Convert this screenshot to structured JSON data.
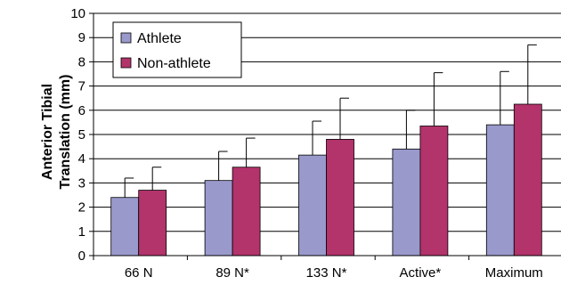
{
  "chart_data": {
    "type": "bar",
    "title": "",
    "xlabel": "",
    "ylabel_lines": [
      "Anterior Tibial",
      "Translation (mm)"
    ],
    "ylim": [
      0,
      10
    ],
    "yticks": [
      0,
      1,
      2,
      3,
      4,
      5,
      6,
      7,
      8,
      9,
      10
    ],
    "categories": [
      "66 N",
      "89 N*",
      "133 N*",
      "Active*",
      "Maximum"
    ],
    "grid": true,
    "legend_position": "top-left",
    "error_bars": "upper",
    "series": [
      {
        "name": "Athlete",
        "color": "#9999cc",
        "values": [
          2.4,
          3.1,
          4.15,
          4.4,
          5.4
        ],
        "error_upper": [
          3.2,
          4.3,
          5.55,
          6.0,
          7.6
        ]
      },
      {
        "name": "Non-athlete",
        "color": "#b3336b",
        "values": [
          2.7,
          3.65,
          4.8,
          5.35,
          6.25
        ],
        "error_upper": [
          3.65,
          4.85,
          6.5,
          7.55,
          8.7
        ]
      }
    ]
  }
}
